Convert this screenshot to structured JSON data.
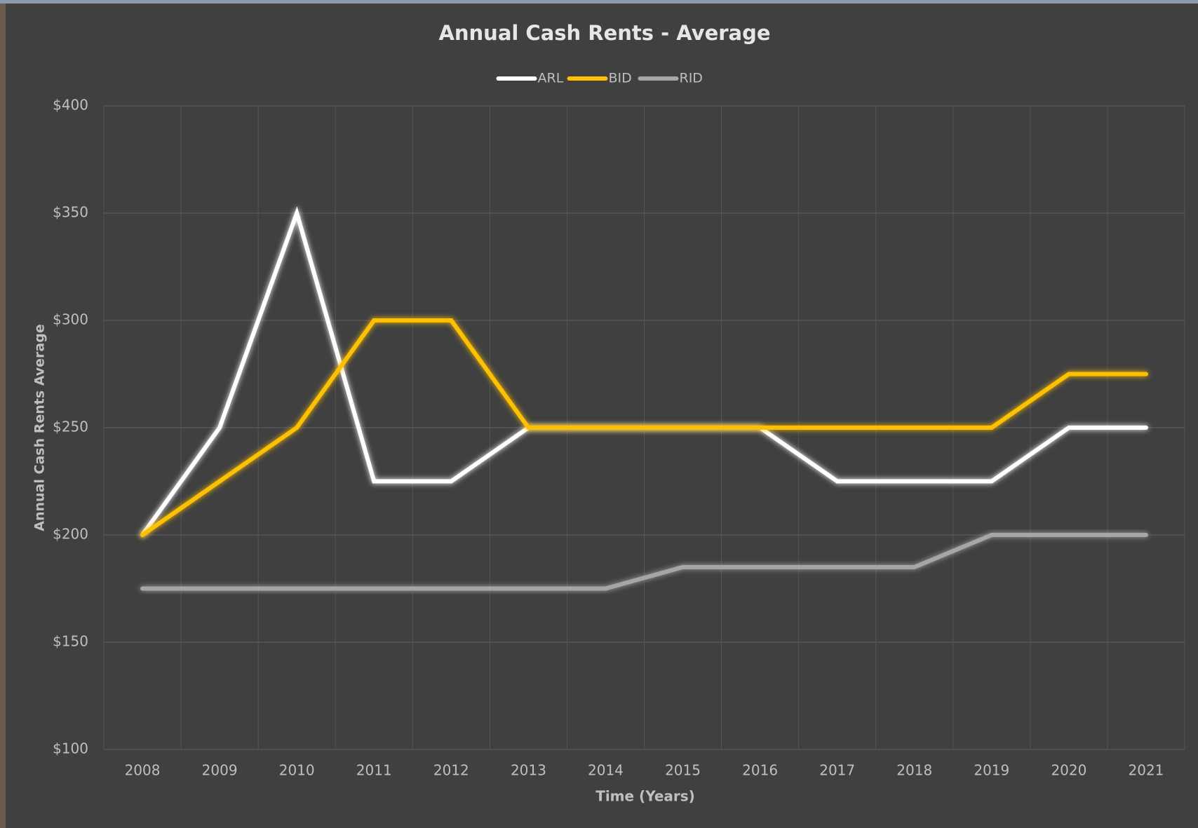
{
  "chart_data": {
    "type": "line",
    "title": "Annual Cash Rents - Average",
    "x_label": "Time (Years)",
    "y_label": "Annual Cash Rents Average",
    "categories": [
      "2008",
      "2009",
      "2010",
      "2011",
      "2012",
      "2013",
      "2014",
      "2015",
      "2016",
      "2017",
      "2018",
      "2019",
      "2020",
      "2021"
    ],
    "series": [
      {
        "name": "ARL",
        "color": "#ffffff",
        "values": [
          200,
          250,
          350,
          225,
          225,
          250,
          250,
          250,
          250,
          225,
          225,
          225,
          250,
          250
        ]
      },
      {
        "name": "BID",
        "color": "#ffc000",
        "values": [
          200,
          225,
          250,
          300,
          300,
          250,
          250,
          250,
          250,
          250,
          250,
          250,
          275,
          275
        ]
      },
      {
        "name": "RID",
        "color": "#a6a6a6",
        "values": [
          175,
          175,
          175,
          175,
          175,
          175,
          175,
          185,
          185,
          185,
          185,
          200,
          200,
          200
        ]
      }
    ],
    "ylim": [
      100,
      400
    ],
    "yticks": [
      {
        "value": 100,
        "label": "$100"
      },
      {
        "value": 150,
        "label": "$150"
      },
      {
        "value": 200,
        "label": "$200"
      },
      {
        "value": 250,
        "label": "$250"
      },
      {
        "value": 300,
        "label": "$300"
      },
      {
        "value": 350,
        "label": "$350"
      },
      {
        "value": 400,
        "label": "$400"
      }
    ],
    "grid": true,
    "legend": "top"
  }
}
